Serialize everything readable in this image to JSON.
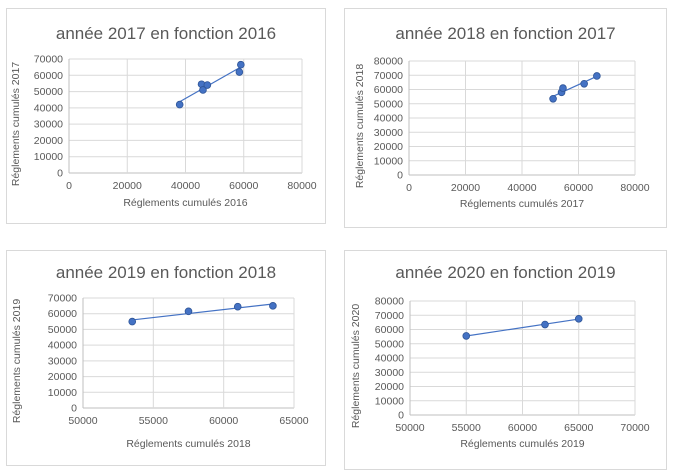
{
  "chart_data": [
    {
      "type": "scatter",
      "title": "année 2017 en fonction 2016",
      "xlabel": "Réglements cumulés 2016",
      "ylabel": "Réglements cumulés 2017",
      "xlim": [
        0,
        80000
      ],
      "x_step": 20000,
      "ylim": [
        0,
        70000
      ],
      "y_step": 10000,
      "grid": true,
      "trendline": true,
      "color": "#4472c4",
      "points": [
        {
          "x": 38000,
          "y": 42000
        },
        {
          "x": 45500,
          "y": 54500
        },
        {
          "x": 46000,
          "y": 51000
        },
        {
          "x": 47500,
          "y": 54000
        },
        {
          "x": 58500,
          "y": 62000
        },
        {
          "x": 59000,
          "y": 66500
        }
      ]
    },
    {
      "type": "scatter",
      "title": "année 2018 en fonction 2017",
      "xlabel": "Réglements cumulés 2017",
      "ylabel": "Réglements cumulés 2018",
      "xlim": [
        0,
        80000
      ],
      "x_step": 20000,
      "ylim": [
        0,
        80000
      ],
      "y_step": 10000,
      "grid": true,
      "trendline": true,
      "color": "#4472c4",
      "points": [
        {
          "x": 51000,
          "y": 53500
        },
        {
          "x": 54000,
          "y": 58000
        },
        {
          "x": 54500,
          "y": 61000
        },
        {
          "x": 62000,
          "y": 64000
        },
        {
          "x": 66500,
          "y": 69500
        }
      ]
    },
    {
      "type": "scatter",
      "title": "année 2019 en fonction 2018",
      "xlabel": "Réglements cumulés 2018",
      "ylabel": "Réglements cumulés 2019",
      "xlim": [
        50000,
        65000
      ],
      "x_step": 5000,
      "ylim": [
        0,
        70000
      ],
      "y_step": 10000,
      "grid": true,
      "trendline": true,
      "color": "#4472c4",
      "points": [
        {
          "x": 53500,
          "y": 55000
        },
        {
          "x": 57500,
          "y": 61500
        },
        {
          "x": 61000,
          "y": 64500
        },
        {
          "x": 63500,
          "y": 65000
        }
      ]
    },
    {
      "type": "scatter",
      "title": "année 2020 en fonction 2019",
      "xlabel": "Réglements cumulés 2019",
      "ylabel": "Réglements cumulés 2020",
      "xlim": [
        50000,
        70000
      ],
      "x_step": 5000,
      "ylim": [
        0,
        80000
      ],
      "y_step": 10000,
      "grid": true,
      "trendline": true,
      "color": "#4472c4",
      "points": [
        {
          "x": 55000,
          "y": 55500
        },
        {
          "x": 62000,
          "y": 63500
        },
        {
          "x": 65000,
          "y": 67500
        }
      ]
    }
  ]
}
